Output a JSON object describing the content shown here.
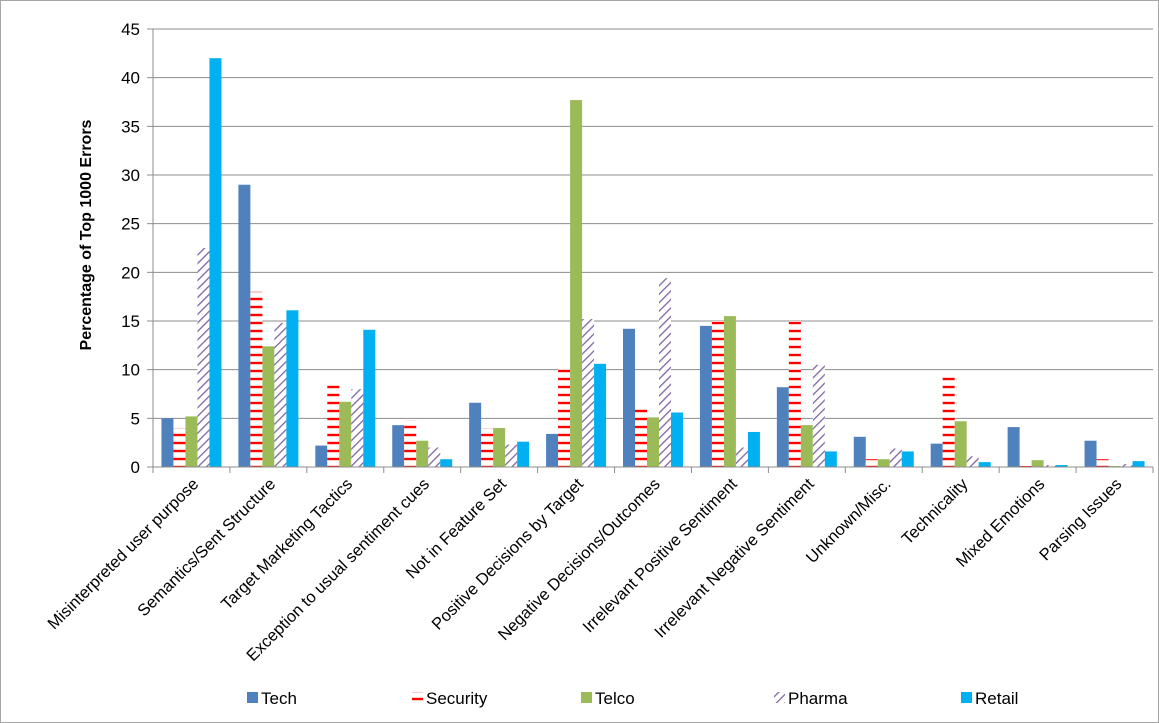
{
  "chart_data": {
    "type": "bar",
    "title": "",
    "xlabel": "",
    "ylabel": "Percentage of Top 1000 Errors",
    "ylim": [
      0,
      45
    ],
    "yticks": [
      0,
      5,
      10,
      15,
      20,
      25,
      30,
      35,
      40,
      45
    ],
    "grid": true,
    "legend_position": "bottom",
    "categories": [
      "Misinterpreted user purpose",
      "Semantics/Sent Structure",
      "Target Marketing Tactics",
      "Exception to usual sentiment cues",
      "Not in Feature Set",
      "Positive Decisions by Target",
      "Negative Decisions/Outcomes",
      "Irrelevant Positive Sentiment",
      "Irrelevant Negative Sentiment",
      "Unknown/Misc.",
      "Technicality",
      "Mixed Emotions",
      "Parsing Issues"
    ],
    "series": [
      {
        "name": "Tech",
        "color": "#4f81bd",
        "pattern": "solid",
        "values": [
          5.0,
          29.0,
          2.2,
          4.3,
          6.6,
          3.4,
          14.2,
          14.5,
          8.2,
          3.1,
          2.4,
          4.1,
          2.7
        ]
      },
      {
        "name": "Security",
        "color": "#ff0000",
        "pattern": "horizontal-dashes",
        "values": [
          4.0,
          18.0,
          8.8,
          4.8,
          4.0,
          10.4,
          6.4,
          15.0,
          15.0,
          0.8,
          9.6,
          0.1,
          0.8
        ]
      },
      {
        "name": "Telco",
        "color": "#9bbb59",
        "pattern": "solid",
        "values": [
          5.2,
          12.4,
          6.7,
          2.7,
          4.0,
          37.7,
          5.1,
          15.5,
          4.3,
          0.8,
          4.7,
          0.7,
          0.1
        ]
      },
      {
        "name": "Pharma",
        "color": "#8064a2",
        "pattern": "diagonal-hatch",
        "values": [
          22.5,
          14.8,
          8.0,
          2.0,
          2.3,
          15.2,
          19.4,
          2.0,
          10.5,
          1.9,
          1.1,
          0.2,
          0.3
        ]
      },
      {
        "name": "Retail",
        "color": "#00b0f0",
        "pattern": "solid",
        "values": [
          42.0,
          16.1,
          14.1,
          0.8,
          2.6,
          10.6,
          5.6,
          3.6,
          1.6,
          1.6,
          0.5,
          0.2,
          0.6
        ]
      }
    ]
  }
}
